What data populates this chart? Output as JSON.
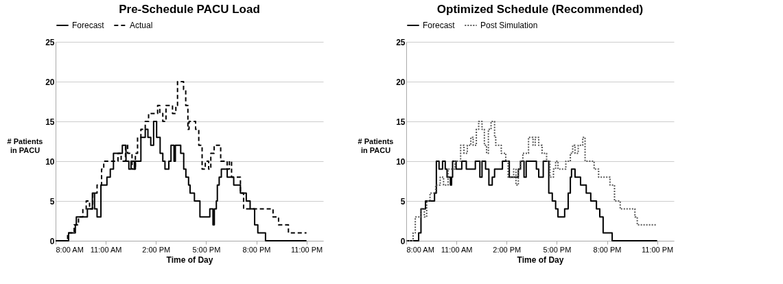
{
  "chart_data": [
    {
      "type": "step",
      "title": "Pre-Schedule PACU Load",
      "xlabel": "Time of Day",
      "ylabel": "# Patients in PACU",
      "xlim": [
        8,
        24
      ],
      "xticks": [
        {
          "value": 8,
          "label": "8:00 AM"
        },
        {
          "value": 11,
          "label": "11:00 AM"
        },
        {
          "value": 14,
          "label": "2:00 PM"
        },
        {
          "value": 17,
          "label": "5:00 PM"
        },
        {
          "value": 20,
          "label": "8:00 PM"
        },
        {
          "value": 23,
          "label": "11:00 PM"
        }
      ],
      "ylim": [
        0,
        25
      ],
      "yticks": [
        0,
        5,
        10,
        15,
        20,
        25
      ],
      "grid": "y",
      "legend": "top",
      "marker": "none",
      "series": [
        {
          "name": "Forecast",
          "color": "#000000",
          "line_style": "solid",
          "x": [
            8,
            8.78,
            9.18,
            9.24,
            9.9,
            10.2,
            10.33,
            10.48,
            10.71,
            11.07,
            11.27,
            11.46,
            11.99,
            12.21,
            12.38,
            12.51,
            12.71,
            12.77,
            13.1,
            13.36,
            13.52,
            13.69,
            13.86,
            14.04,
            14.25,
            14.41,
            14.54,
            14.77,
            14.9,
            15.08,
            15.16,
            15.48,
            15.66,
            15.79,
            15.95,
            16.04,
            16.3,
            16.63,
            17.22,
            17.41,
            17.49,
            17.61,
            17.67,
            17.78,
            17.91,
            18.26,
            18.65,
            19.05,
            19.4,
            19.63,
            19.9,
            20.09,
            20.55,
            23.0
          ],
          "values": [
            0,
            1,
            2,
            3,
            4,
            6,
            4,
            3,
            7,
            8,
            9,
            11,
            12,
            10,
            9,
            10,
            9,
            10,
            13,
            14,
            13,
            12,
            15,
            13,
            11,
            10,
            9,
            10,
            12,
            10,
            12,
            11,
            9,
            8,
            7,
            6,
            5,
            3,
            4,
            2,
            4,
            5,
            7,
            8,
            9,
            8,
            7,
            6,
            5,
            4,
            2,
            1,
            0,
            0
          ]
        },
        {
          "name": "Actual",
          "color": "#000000",
          "line_style": "dashed",
          "x": [
            8,
            8.72,
            9.11,
            9.37,
            9.63,
            9.83,
            10.03,
            10.22,
            10.48,
            10.75,
            10.88,
            11.73,
            11.92,
            12.18,
            12.31,
            12.57,
            12.77,
            12.9,
            13.1,
            13.36,
            13.56,
            14.1,
            14.23,
            14.41,
            14.6,
            14.99,
            15.19,
            15.29,
            15.65,
            15.78,
            15.91,
            15.98,
            16.37,
            16.56,
            16.76,
            16.95,
            17.15,
            17.28,
            17.48,
            17.87,
            18.26,
            18.39,
            18.52,
            19.05,
            19.24,
            21.0,
            21.33,
            21.92,
            23.0
          ],
          "values": [
            0,
            1,
            2,
            3,
            4,
            5,
            4,
            6,
            7,
            9,
            10,
            11,
            10,
            12,
            11,
            9,
            11,
            13,
            14,
            15,
            16,
            17,
            16,
            15,
            17,
            16,
            17,
            20,
            19,
            17,
            14,
            15,
            14,
            12,
            9,
            10,
            9,
            11,
            12,
            10,
            9,
            10,
            8,
            6,
            4,
            3,
            2,
            1,
            1
          ]
        }
      ]
    },
    {
      "type": "step",
      "title": "Optimized Schedule (Recommended)",
      "xlabel": "Time of  Day",
      "ylabel": "# Patients in PACU",
      "xlim": [
        8,
        24
      ],
      "xticks": [
        {
          "value": 8,
          "label": "8:00 AM"
        },
        {
          "value": 11,
          "label": "11:00 AM"
        },
        {
          "value": 14,
          "label": "2:00 PM"
        },
        {
          "value": 17,
          "label": "5:00 PM"
        },
        {
          "value": 20,
          "label": "8:00 PM"
        },
        {
          "value": 23,
          "label": "11:00 PM"
        }
      ],
      "ylim": [
        0,
        25
      ],
      "yticks": [
        0,
        5,
        10,
        15,
        20,
        25
      ],
      "grid": "y",
      "legend": "top",
      "marker": "none",
      "series": [
        {
          "name": "Forecast",
          "color": "#000000",
          "line_style": "solid",
          "x": [
            8,
            8.74,
            8.88,
            9.15,
            9.69,
            9.8,
            9.96,
            10.17,
            10.33,
            10.44,
            10.64,
            10.71,
            10.77,
            10.98,
            11.32,
            11.59,
            12.13,
            12.4,
            12.53,
            12.74,
            12.94,
            13.14,
            13.28,
            13.75,
            14.16,
            14.7,
            14.83,
            15.04,
            15.17,
            15.78,
            15.92,
            16.19,
            16.52,
            16.73,
            16.93,
            17.07,
            17.47,
            17.68,
            17.81,
            17.88,
            18.09,
            18.42,
            18.76,
            19.03,
            19.37,
            19.57,
            19.77,
            20.31,
            23.0
          ],
          "values": [
            0,
            1,
            4,
            5,
            6,
            10,
            9,
            10,
            9,
            8,
            7,
            8,
            10,
            9,
            10,
            9,
            10,
            8,
            10,
            9,
            7,
            8,
            9,
            10,
            8,
            9,
            10,
            8,
            10,
            9,
            8,
            10,
            6,
            5,
            4,
            3,
            4,
            6,
            8,
            9,
            8,
            7,
            6,
            5,
            4,
            3,
            1,
            0,
            0
          ]
        },
        {
          "name": "Post Simulation",
          "color": "#555555",
          "line_style": "dotted",
          "x": [
            8,
            8.41,
            8.54,
            8.88,
            9.08,
            9.22,
            9.42,
            9.76,
            10.03,
            10.23,
            10.5,
            10.91,
            11.25,
            11.45,
            11.65,
            11.86,
            12.0,
            12.19,
            12.33,
            12.53,
            12.67,
            12.8,
            12.91,
            13.07,
            13.28,
            13.35,
            13.68,
            13.95,
            14.09,
            14.42,
            14.56,
            14.7,
            14.83,
            14.97,
            15.31,
            15.58,
            15.71,
            15.92,
            16.12,
            16.39,
            16.59,
            16.8,
            16.93,
            17.07,
            17.54,
            17.81,
            17.95,
            18.09,
            18.28,
            18.55,
            18.69,
            19.23,
            19.5,
            20.18,
            20.45,
            20.79,
            21.67,
            21.81,
            22.95
          ],
          "values": [
            0,
            1,
            3,
            4,
            3,
            5,
            6,
            7,
            8,
            7,
            9,
            10,
            12,
            11,
            12,
            13,
            12,
            14,
            15,
            14,
            12,
            11,
            14,
            15,
            13,
            12,
            11,
            10,
            8,
            9,
            7,
            9,
            10,
            11,
            13,
            12,
            13,
            12,
            11,
            10,
            8,
            9,
            10,
            9,
            10,
            11,
            12,
            11,
            12,
            13,
            10,
            9,
            8,
            7,
            5,
            4,
            3,
            2,
            2
          ]
        }
      ]
    }
  ]
}
